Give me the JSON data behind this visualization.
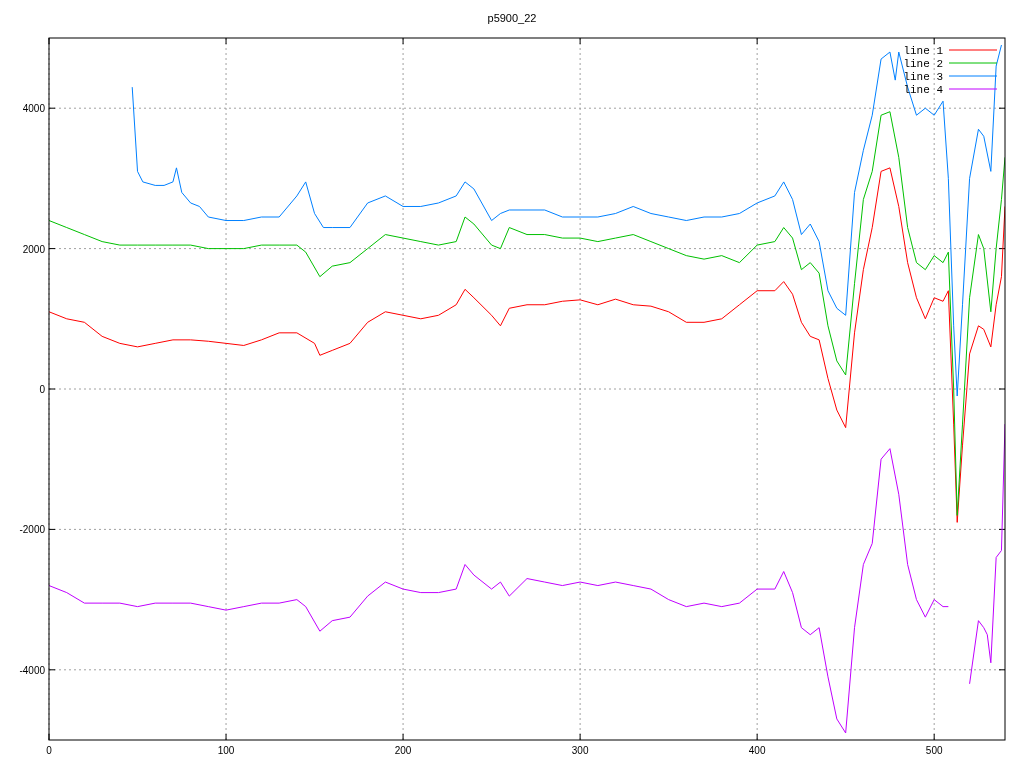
{
  "chart_data": {
    "type": "line",
    "title": "p5900_22",
    "xlim": [
      0,
      540
    ],
    "ylim": [
      -5000,
      5000
    ],
    "xticks": [
      0,
      100,
      200,
      300,
      400,
      500
    ],
    "yticks": [
      -4000,
      -2000,
      0,
      2000,
      4000
    ],
    "grid": true,
    "legend": "top right",
    "line_style": "solid",
    "series": [
      {
        "name": "line 1",
        "color": "#ff0000",
        "x": [
          0,
          10,
          20,
          30,
          40,
          50,
          60,
          70,
          80,
          90,
          100,
          110,
          120,
          130,
          140,
          150,
          153,
          160,
          170,
          180,
          190,
          200,
          210,
          220,
          230,
          235,
          240,
          250,
          255,
          260,
          270,
          280,
          290,
          300,
          310,
          320,
          330,
          340,
          350,
          360,
          370,
          380,
          390,
          400,
          410,
          415,
          420,
          425,
          430,
          435,
          440,
          445,
          450,
          455,
          460,
          465,
          470,
          475,
          480,
          485,
          490,
          495,
          500,
          505,
          508,
          511,
          513,
          516,
          520,
          525,
          528,
          532,
          535,
          538,
          540
        ],
        "values": [
          1100,
          1000,
          950,
          750,
          650,
          600,
          650,
          700,
          700,
          680,
          650,
          620,
          700,
          800,
          800,
          650,
          480,
          550,
          650,
          950,
          1100,
          1050,
          1000,
          1050,
          1200,
          1420,
          1300,
          1050,
          900,
          1150,
          1200,
          1200,
          1250,
          1270,
          1200,
          1280,
          1200,
          1180,
          1100,
          950,
          950,
          1000,
          1200,
          1400,
          1400,
          1530,
          1350,
          950,
          750,
          700,
          150,
          -300,
          -550,
          800,
          1700,
          2300,
          3100,
          3150,
          2600,
          1800,
          1300,
          1000,
          1300,
          1250,
          1400,
          -500,
          -1900,
          -800,
          500,
          900,
          850,
          600,
          1200,
          1600,
          2600
        ]
      },
      {
        "name": "line 2",
        "color": "#00c000",
        "x": [
          0,
          10,
          20,
          30,
          40,
          50,
          60,
          70,
          80,
          90,
          100,
          110,
          120,
          130,
          140,
          145,
          153,
          160,
          170,
          180,
          190,
          200,
          210,
          220,
          230,
          235,
          240,
          250,
          255,
          260,
          270,
          280,
          290,
          300,
          310,
          320,
          330,
          340,
          350,
          360,
          370,
          380,
          390,
          400,
          410,
          415,
          420,
          425,
          430,
          435,
          440,
          445,
          450,
          455,
          460,
          465,
          470,
          475,
          480,
          485,
          490,
          495,
          500,
          505,
          508,
          511,
          513,
          516,
          520,
          525,
          528,
          532,
          535,
          538,
          540
        ],
        "values": [
          2400,
          2300,
          2200,
          2100,
          2050,
          2050,
          2050,
          2050,
          2050,
          2000,
          2000,
          2000,
          2050,
          2050,
          2050,
          1950,
          1600,
          1750,
          1800,
          2000,
          2200,
          2150,
          2100,
          2050,
          2100,
          2450,
          2350,
          2050,
          2000,
          2300,
          2200,
          2200,
          2150,
          2150,
          2100,
          2150,
          2200,
          2100,
          2000,
          1900,
          1850,
          1900,
          1800,
          2050,
          2100,
          2300,
          2150,
          1700,
          1800,
          1650,
          900,
          400,
          200,
          1500,
          2700,
          3100,
          3900,
          3950,
          3300,
          2300,
          1800,
          1700,
          1900,
          1800,
          1950,
          0,
          -1800,
          -500,
          1300,
          2200,
          2000,
          1100,
          2000,
          2700,
          3300
        ]
      },
      {
        "name": "line 3",
        "color": "#0080ff",
        "x": [
          47,
          50,
          53,
          60,
          65,
          70,
          72,
          75,
          80,
          85,
          90,
          100,
          110,
          120,
          130,
          140,
          145,
          150,
          155,
          160,
          170,
          180,
          190,
          200,
          210,
          220,
          230,
          235,
          240,
          250,
          255,
          260,
          270,
          280,
          290,
          300,
          310,
          320,
          330,
          340,
          350,
          360,
          370,
          380,
          390,
          400,
          410,
          415,
          420,
          425,
          430,
          435,
          440,
          445,
          450,
          455,
          460,
          465,
          470,
          475,
          478,
          480,
          485,
          490,
          495,
          500,
          505,
          508,
          511,
          513,
          516,
          520,
          525,
          528,
          532,
          535,
          538
        ],
        "values": [
          4300,
          3100,
          2950,
          2900,
          2900,
          2950,
          3150,
          2800,
          2650,
          2600,
          2450,
          2400,
          2400,
          2450,
          2450,
          2750,
          2950,
          2500,
          2300,
          2300,
          2300,
          2650,
          2750,
          2600,
          2600,
          2650,
          2750,
          2950,
          2850,
          2400,
          2500,
          2550,
          2550,
          2550,
          2450,
          2450,
          2450,
          2500,
          2600,
          2500,
          2450,
          2400,
          2450,
          2450,
          2500,
          2650,
          2750,
          2950,
          2700,
          2200,
          2350,
          2100,
          1400,
          1150,
          1050,
          2800,
          3400,
          3900,
          4700,
          4800,
          4400,
          4800,
          4300,
          3900,
          4000,
          3900,
          4100,
          3000,
          900,
          -100,
          1200,
          3000,
          3700,
          3600,
          3100,
          4600,
          4900
        ]
      },
      {
        "name": "line 4",
        "color": "#c000ff",
        "x": [
          0,
          10,
          20,
          30,
          40,
          50,
          60,
          70,
          80,
          90,
          100,
          110,
          120,
          130,
          140,
          145,
          153,
          160,
          170,
          180,
          190,
          200,
          210,
          220,
          230,
          235,
          240,
          250,
          255,
          260,
          270,
          280,
          290,
          300,
          310,
          320,
          330,
          340,
          350,
          360,
          370,
          380,
          390,
          400,
          410,
          415,
          420,
          425,
          430,
          435,
          440,
          445,
          450,
          455,
          460,
          465,
          470,
          475,
          480,
          485,
          490,
          495,
          500,
          505,
          508,
          511,
          513,
          517,
          520,
          525,
          528,
          530,
          532,
          535,
          538,
          540
        ],
        "values": [
          -2800,
          -2900,
          -3050,
          -3050,
          -3050,
          -3100,
          -3050,
          -3050,
          -3050,
          -3100,
          -3150,
          -3100,
          -3050,
          -3050,
          -3000,
          -3100,
          -3450,
          -3300,
          -3250,
          -2950,
          -2750,
          -2850,
          -2900,
          -2900,
          -2850,
          -2500,
          -2650,
          -2850,
          -2750,
          -2950,
          -2700,
          -2750,
          -2800,
          -2750,
          -2800,
          -2750,
          -2800,
          -2850,
          -3000,
          -3100,
          -3050,
          -3100,
          -3050,
          -2850,
          -2850,
          -2600,
          -2900,
          -3400,
          -3500,
          -3400,
          -4100,
          -4700,
          -4900,
          -3400,
          -2500,
          -2200,
          -1000,
          -850,
          -1500,
          -2500,
          -3000,
          -3250,
          -3000,
          -3100,
          -3100,
          null,
          null,
          null,
          -4200,
          -3300,
          -3400,
          -3500,
          -3900,
          -2400,
          -2300,
          -500
        ]
      }
    ]
  }
}
